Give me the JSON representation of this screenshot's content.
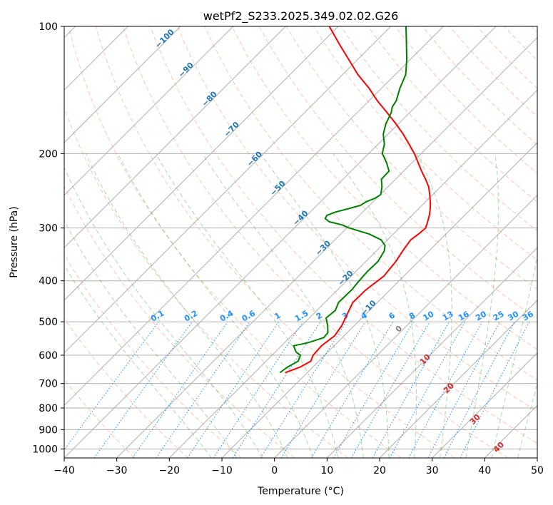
{
  "chart_data": {
    "type": "line",
    "title": "wetPf2_S233.2025.349.02.02.G26",
    "xlabel": "Temperature (°C)",
    "ylabel": "Pressure (hPa)",
    "xlim": [
      -40,
      50
    ],
    "ylim": [
      1050,
      100
    ],
    "y_scale": "log",
    "x_ticks": [
      "−40",
      "−30",
      "−20",
      "−10",
      "0",
      "10",
      "20",
      "30",
      "40",
      "50"
    ],
    "x_tick_values": [
      -40,
      -30,
      -20,
      -10,
      0,
      10,
      20,
      30,
      40,
      50
    ],
    "y_ticks": [
      "100",
      "200",
      "300",
      "400",
      "500",
      "600",
      "700",
      "800",
      "900",
      "1000"
    ],
    "y_tick_values": [
      100,
      200,
      300,
      400,
      500,
      600,
      700,
      800,
      900,
      1000
    ],
    "grid": true,
    "skew": true,
    "series": [
      {
        "name": "",
        "role": "temperature",
        "color": "#ff0000",
        "p": [
          660,
          640,
          620,
          600,
          570,
          540,
          510,
          480,
          450,
          420,
          390,
          360,
          340,
          330,
          320,
          310,
          300,
          290,
          280,
          270,
          260,
          250,
          240,
          230,
          220,
          210,
          200,
          190,
          180,
          170,
          160,
          150,
          140,
          130,
          120,
          110,
          100
        ],
        "t": [
          -14.2,
          -12.4,
          -11.5,
          -12.2,
          -12.4,
          -11.8,
          -12.4,
          -13.5,
          -14.7,
          -14.6,
          -13.8,
          -14.3,
          -15.0,
          -15.3,
          -15.6,
          -15.2,
          -15.0,
          -15.8,
          -16.7,
          -17.8,
          -19.1,
          -20.6,
          -22.2,
          -24.3,
          -26.6,
          -28.9,
          -31.3,
          -34.1,
          -37.1,
          -40.5,
          -44.3,
          -48.4,
          -52.4,
          -57.1,
          -61.6,
          -66.5,
          -71.7
        ]
      },
      {
        "name": "",
        "role": "dewpoint",
        "color": "#008000",
        "p": [
          660,
          640,
          620,
          600,
          590,
          570,
          560,
          545,
          530,
          510,
          490,
          470,
          450,
          420,
          400,
          380,
          360,
          340,
          330,
          320,
          310,
          300,
          295,
          290,
          285,
          280,
          275,
          270,
          265,
          260,
          255,
          250,
          240,
          230,
          220,
          210,
          200,
          190,
          180,
          170,
          160,
          155,
          150,
          140,
          130,
          120,
          110,
          100
        ],
        "t": [
          -15.2,
          -14.8,
          -13.9,
          -14.6,
          -16.0,
          -17.7,
          -15.5,
          -13.5,
          -13.7,
          -15.1,
          -16.8,
          -16.5,
          -17.4,
          -17.3,
          -17.6,
          -17.8,
          -17.7,
          -18.5,
          -19.4,
          -21.2,
          -24.6,
          -29.5,
          -31.5,
          -34.5,
          -35.9,
          -36.2,
          -35.2,
          -33.4,
          -31.7,
          -31.3,
          -30.3,
          -29.9,
          -31.1,
          -32.7,
          -32.8,
          -34.9,
          -37.4,
          -38.8,
          -40.9,
          -42.4,
          -43.5,
          -44.4,
          -44.8,
          -46.5,
          -48.0,
          -50.6,
          -53.7,
          -57.1
        ]
      }
    ],
    "isotherm_labels": [
      "−100",
      "−90",
      "−80",
      "−70",
      "−60",
      "−50",
      "−40",
      "−30",
      "−20",
      "−10"
    ],
    "mixing_ratio_labels": [
      "0.1",
      "0.2",
      "0.4",
      "0.6",
      "1",
      "1.5",
      "2",
      "3",
      "4",
      "6",
      "8",
      "10",
      "13",
      "16",
      "20",
      "25",
      "30",
      "36"
    ],
    "mixing_ratio_values": [
      0.1,
      0.2,
      0.4,
      0.6,
      1,
      1.5,
      2,
      3,
      4,
      6,
      8,
      10,
      13,
      16,
      20,
      25,
      30,
      36
    ],
    "moist_adiabat_labels": [
      "0",
      "10",
      "20",
      "30",
      "40"
    ],
    "colors": {
      "isotherm_label": "#1f77b4",
      "mixing_ratio": "#1e90ff",
      "moist_adiabat_label": "#d62728",
      "zero_label": "#808080",
      "dry_adiabat": "#ff7f50",
      "moist_adiabat": "#2ca02c",
      "grid": "#b0b0b0"
    }
  }
}
